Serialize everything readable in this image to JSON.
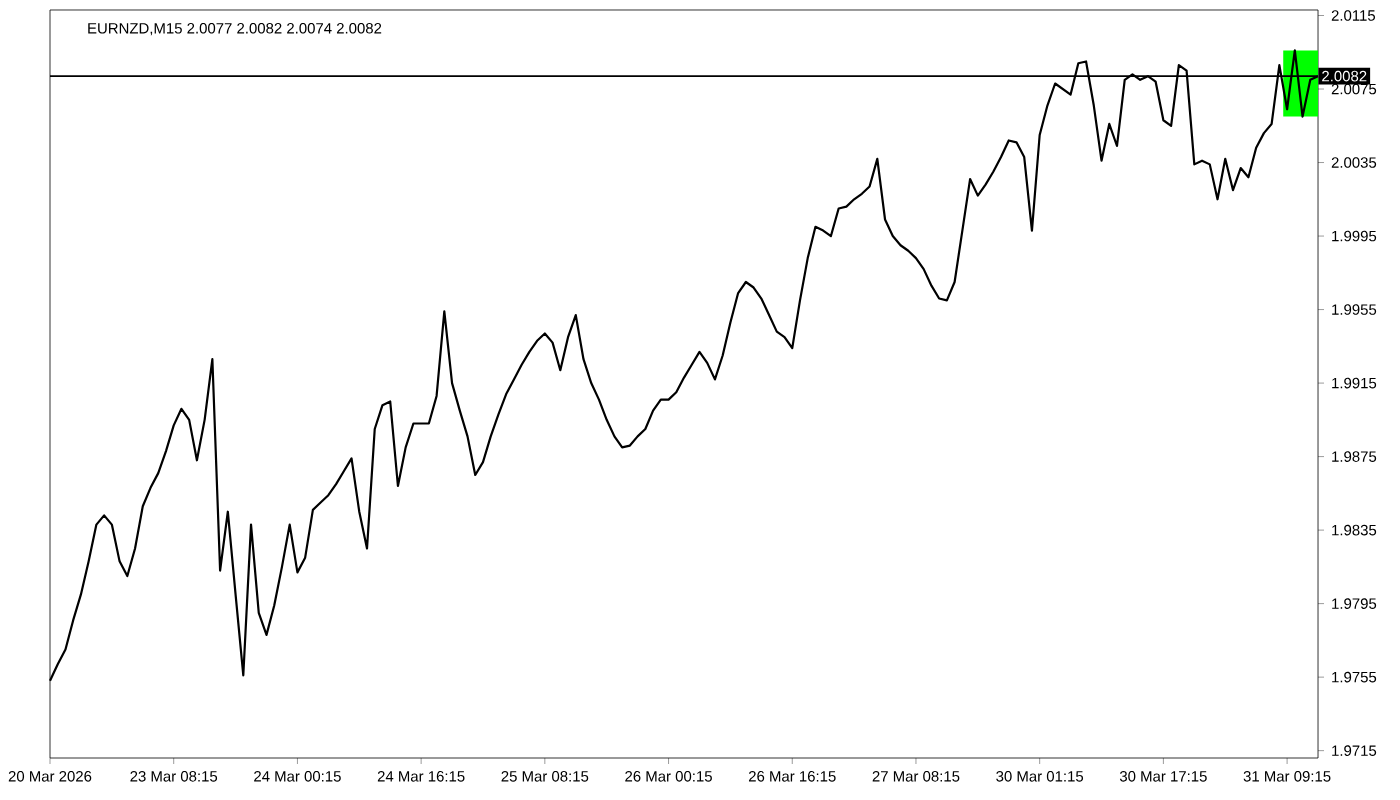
{
  "chart_data": {
    "type": "line",
    "title": "EURNZD,M15  2.0077 2.0082 2.0074 2.0082",
    "categories": [
      "20 Mar 2026",
      null,
      null,
      null,
      null,
      null,
      null,
      null,
      null,
      null,
      null,
      null,
      null,
      null,
      null,
      null,
      "23 Mar 08:15",
      null,
      null,
      null,
      null,
      null,
      null,
      null,
      null,
      null,
      null,
      null,
      null,
      null,
      null,
      null,
      "24 Mar 00:15",
      null,
      null,
      null,
      null,
      null,
      null,
      null,
      null,
      null,
      null,
      null,
      null,
      null,
      null,
      null,
      "24 Mar 16:15",
      null,
      null,
      null,
      null,
      null,
      null,
      null,
      null,
      null,
      null,
      null,
      null,
      null,
      null,
      null,
      "25 Mar 08:15",
      null,
      null,
      null,
      null,
      null,
      null,
      null,
      null,
      null,
      null,
      null,
      null,
      null,
      null,
      null,
      "26 Mar 00:15",
      null,
      null,
      null,
      null,
      null,
      null,
      null,
      null,
      null,
      null,
      null,
      null,
      null,
      null,
      null,
      "26 Mar 16:15",
      null,
      null,
      null,
      null,
      null,
      null,
      null,
      null,
      null,
      null,
      null,
      null,
      null,
      null,
      null,
      "27 Mar 08:15",
      null,
      null,
      null,
      null,
      null,
      null,
      null,
      null,
      null,
      null,
      null,
      null,
      null,
      null,
      null,
      "30 Mar 01:15",
      null,
      null,
      null,
      null,
      null,
      null,
      null,
      null,
      null,
      null,
      null,
      null,
      null,
      null,
      null,
      "30 Mar 17:15",
      null,
      null,
      null,
      null,
      null,
      null,
      null,
      null,
      null,
      null,
      null,
      null,
      null,
      null,
      null,
      "31 Mar 09:15",
      null,
      null,
      null,
      null
    ],
    "series": [
      {
        "color": "#000000",
        "values": [
          1.9753,
          1.9762,
          1.977,
          1.9786,
          1.98,
          1.9818,
          1.9838,
          1.9843,
          1.9838,
          1.9818,
          1.981,
          1.9825,
          1.9848,
          1.9858,
          1.9866,
          1.9878,
          1.9892,
          1.9901,
          1.9895,
          1.9873,
          1.9895,
          1.9928,
          1.9813,
          1.9845,
          1.98,
          1.9756,
          1.9838,
          1.979,
          1.9778,
          1.9794,
          1.9815,
          1.9838,
          1.9812,
          1.982,
          1.9846,
          1.985,
          1.9854,
          1.986,
          1.9867,
          1.9874,
          1.9845,
          1.9825,
          1.989,
          1.9903,
          1.9905,
          1.9859,
          1.988,
          1.9893,
          1.9893,
          1.9893,
          1.9908,
          1.9954,
          1.9915,
          1.99,
          1.9886,
          1.9865,
          1.9872,
          1.9886,
          1.9898,
          1.9909,
          1.9917,
          1.9925,
          1.9932,
          1.9938,
          1.9942,
          1.9937,
          1.9922,
          1.994,
          1.9952,
          1.9928,
          1.9915,
          1.9906,
          1.9895,
          1.9886,
          1.988,
          1.9881,
          1.9886,
          1.989,
          1.99,
          1.9906,
          1.9906,
          1.991,
          1.9918,
          1.9925,
          1.9932,
          1.9926,
          1.9917,
          1.993,
          1.9948,
          1.9964,
          1.997,
          1.9967,
          1.9961,
          1.9952,
          1.9943,
          1.994,
          1.9934,
          1.996,
          1.9983,
          2.0,
          1.9998,
          1.9995,
          2.001,
          2.0011,
          2.0015,
          2.0018,
          2.0022,
          2.0037,
          2.0004,
          1.9995,
          1.999,
          1.9987,
          1.9983,
          1.9977,
          1.9968,
          1.9961,
          1.996,
          1.997,
          1.9998,
          2.0026,
          2.0017,
          2.0023,
          2.003,
          2.0038,
          2.0047,
          2.0046,
          2.0038,
          1.9998,
          2.005,
          2.0066,
          2.0078,
          2.0075,
          2.0072,
          2.0089,
          2.009,
          2.0066,
          2.0036,
          2.0056,
          2.0044,
          2.008,
          2.0083,
          2.008,
          2.0082,
          2.0079,
          2.0058,
          2.0055,
          2.0088,
          2.0085,
          2.0034,
          2.0036,
          2.0034,
          2.0015,
          2.0037,
          2.002,
          2.0032,
          2.0027,
          2.0043,
          2.0051,
          2.0056,
          2.0088,
          2.0064,
          2.0096,
          2.006,
          2.008,
          2.0082
        ]
      }
    ],
    "ylim": [
      1.9711,
      2.0118
    ],
    "yticks": [
      1.9715,
      1.9755,
      1.9795,
      1.9835,
      1.9875,
      1.9915,
      1.9955,
      1.9995,
      2.0035,
      2.0075,
      2.0115
    ],
    "ref_lines": [
      {
        "axis": "y",
        "value": 2.0082,
        "label": "2.0082",
        "color": "#000000"
      }
    ],
    "marker": "none",
    "line_style": "solid"
  }
}
